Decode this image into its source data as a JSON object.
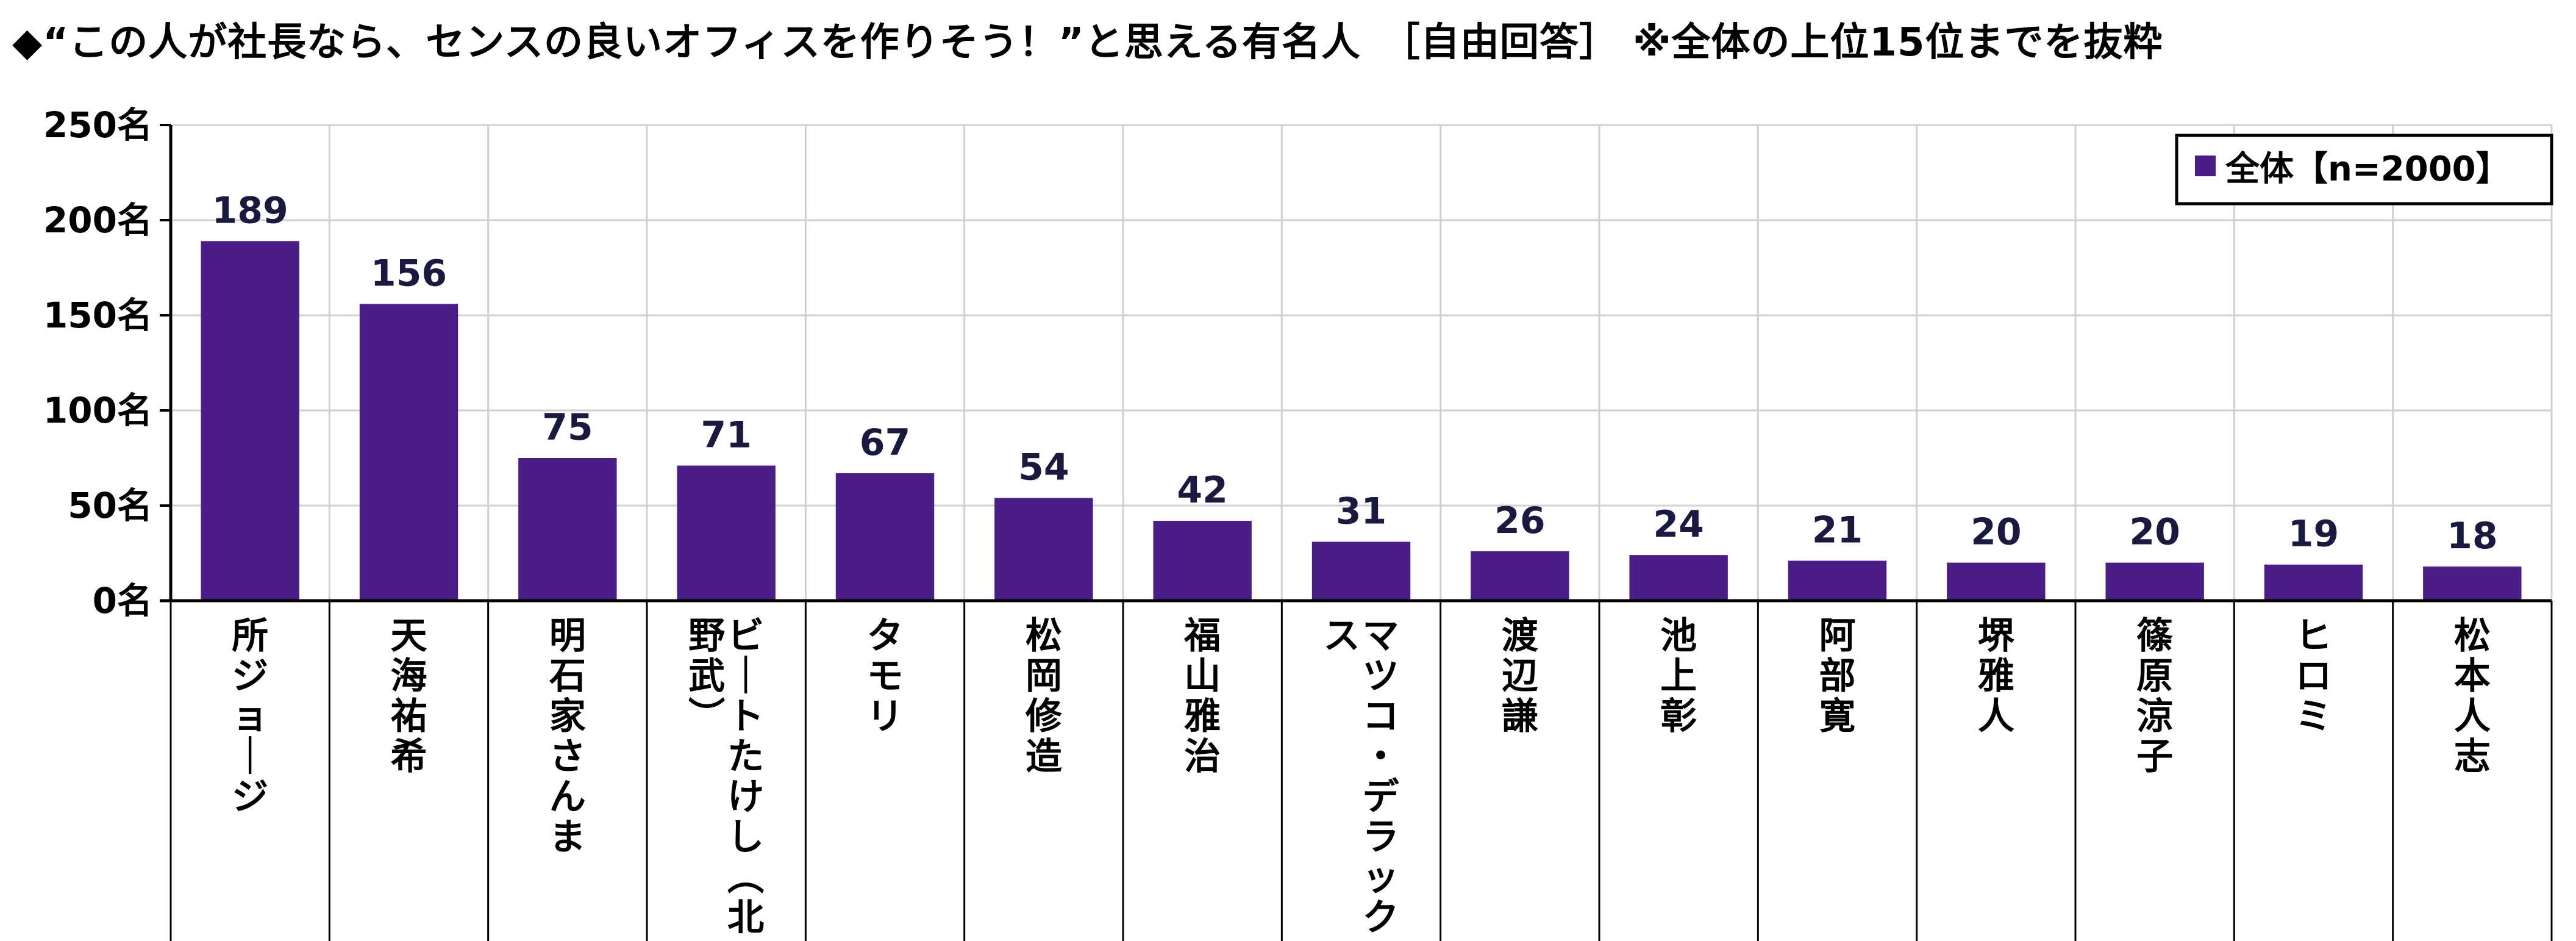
{
  "chart_data": {
    "type": "bar",
    "title": "◆“この人が社長なら、センスの良いオフィスを作りそう！”と思える有名人　［自由回答］ ※全体の上位15位までを抜粋",
    "categories": [
      "所ジョージ",
      "天海祐希",
      "明石家さんま",
      "ビートたけし（北野武）",
      "タモリ",
      "松岡修造",
      "福山雅治",
      "マツコ・デラックス",
      "渡辺謙",
      "池上彰",
      "阿部寛",
      "堺雅人",
      "篠原涼子",
      "ヒロミ",
      "松本人志"
    ],
    "series": [
      {
        "name": "全体【n=2000】",
        "values": [
          189,
          156,
          75,
          71,
          67,
          54,
          42,
          31,
          26,
          24,
          21,
          20,
          20,
          19,
          18
        ]
      }
    ],
    "ylim": [
      0,
      250
    ],
    "yticks": [
      "0名",
      "50名",
      "100名",
      "150名",
      "200名",
      "250名"
    ],
    "grid": true,
    "legend_position": "top-right",
    "colors": {
      "bar": "#4b1e87",
      "grid": "#d0d0d0",
      "axis": "#000000"
    }
  }
}
